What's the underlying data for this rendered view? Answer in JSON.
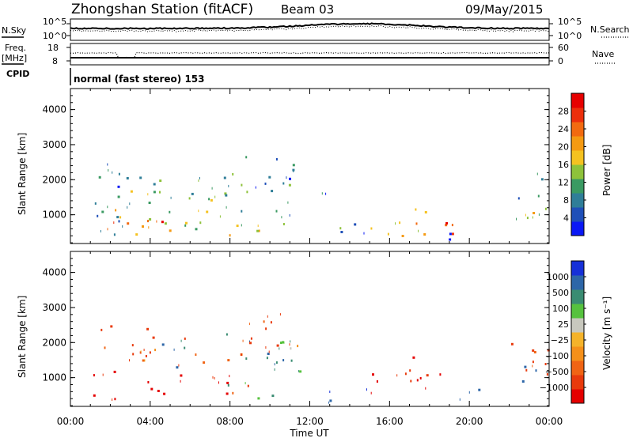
{
  "header": {
    "station": "Zhongshan Station (fitACF)",
    "beam": "Beam 03",
    "date": "09/May/2015"
  },
  "summary": {
    "nsky_label": "N.Sky",
    "nsearch_label": "N.Search",
    "freq_label_1": "Freq.",
    "freq_label_2": "[MHz]",
    "nave_label": "Nave",
    "cpid_label": "CPID",
    "cpid_text": "normal (fast stereo) 153",
    "n_top": "10^5",
    "n_bottom": "10^0",
    "freq_top": "18",
    "freq_bottom": "8",
    "nave_top": "60",
    "nave_bottom": "0"
  },
  "x_axis": {
    "label": "Time UT",
    "ticks": [
      "00:00",
      "04:00",
      "08:00",
      "12:00",
      "16:00",
      "20:00",
      "00:00"
    ]
  },
  "chart_data": [
    {
      "type": "heatmap",
      "name": "power",
      "ylabel": "Slant Range [km]",
      "yticks": [
        1000,
        2000,
        3000,
        4000
      ],
      "ylim": [
        180,
        4600
      ],
      "xlim_hours": [
        0,
        24
      ],
      "colorbar": {
        "label": "Power [dB]",
        "ticks": [
          "4",
          "8",
          "12",
          "16",
          "20",
          "24",
          "28"
        ],
        "colors": [
          "#0a18f5",
          "#1f4fb8",
          "#2f7e98",
          "#3a9a62",
          "#8ec23a",
          "#f5c220",
          "#f59a12",
          "#f26a10",
          "#ec2f0c",
          "#e60000"
        ]
      },
      "blobs": [
        {
          "t0": 1.0,
          "t1": 3.0,
          "r0": 250,
          "r1": 2600,
          "v": 6
        },
        {
          "t0": 1.3,
          "t1": 3.2,
          "r0": 400,
          "r1": 1200,
          "v": 24
        },
        {
          "t0": 3.0,
          "t1": 6.0,
          "r0": 300,
          "r1": 1000,
          "v": 18
        },
        {
          "t0": 3.0,
          "t1": 5.2,
          "r0": 500,
          "r1": 900,
          "v": 27
        },
        {
          "t0": 2.0,
          "t1": 10.5,
          "r0": 1100,
          "r1": 2200,
          "v": 11
        },
        {
          "t0": 5.5,
          "t1": 9.5,
          "r0": 600,
          "r1": 1200,
          "v": 15
        },
        {
          "t0": 7.0,
          "t1": 10.0,
          "r0": 400,
          "r1": 800,
          "v": 20
        },
        {
          "t0": 8.5,
          "t1": 11.2,
          "r0": 1500,
          "r1": 2700,
          "v": 7
        },
        {
          "t0": 10.0,
          "t1": 11.5,
          "r0": 700,
          "r1": 1900,
          "v": 10
        },
        {
          "t0": 12.5,
          "t1": 13.5,
          "r0": 1500,
          "r1": 2000,
          "v": 6
        },
        {
          "t0": 13.0,
          "t1": 15.5,
          "r0": 300,
          "r1": 800,
          "v": 9
        },
        {
          "t0": 15.0,
          "t1": 18.0,
          "r0": 400,
          "r1": 1300,
          "v": 19
        },
        {
          "t0": 17.0,
          "t1": 19.2,
          "r0": 400,
          "r1": 1100,
          "v": 26
        },
        {
          "t0": 18.5,
          "t1": 20.2,
          "r0": 300,
          "r1": 700,
          "v": 7
        },
        {
          "t0": 22.0,
          "t1": 24.0,
          "r0": 900,
          "r1": 2300,
          "v": 9
        },
        {
          "t0": 22.8,
          "t1": 23.8,
          "r0": 800,
          "r1": 1400,
          "v": 19
        }
      ]
    },
    {
      "type": "heatmap",
      "name": "velocity",
      "ylabel": "Slant Range [km]",
      "yticks": [
        1000,
        2000,
        3000,
        4000
      ],
      "ylim": [
        180,
        4600
      ],
      "xlim_hours": [
        0,
        24
      ],
      "colorbar": {
        "label": "Velocity [m s⁻¹]",
        "ticks": [
          "1000",
          "500",
          "100",
          "25",
          "−25",
          "−100",
          "−500",
          "−1000"
        ],
        "colors": [
          "#1630d8",
          "#2d66a8",
          "#3a8c72",
          "#56c23e",
          "#c8c8be",
          "#f5b32a",
          "#f5901a",
          "#f06414",
          "#e83a0c",
          "#e40000"
        ]
      },
      "blobs": [
        {
          "t0": 1.0,
          "t1": 3.0,
          "r0": 400,
          "r1": 1300,
          "v": -300
        },
        {
          "t0": 1.0,
          "t1": 4.5,
          "r0": 1500,
          "r1": 2600,
          "v": -110
        },
        {
          "t0": 3.0,
          "t1": 8.0,
          "r0": 500,
          "r1": 1100,
          "v": -350
        },
        {
          "t0": 3.5,
          "t1": 11.5,
          "r0": 1300,
          "r1": 2300,
          "v": 0
        },
        {
          "t0": 7.0,
          "t1": 10.5,
          "r0": 400,
          "r1": 1100,
          "v": 0
        },
        {
          "t0": 8.5,
          "t1": 11.2,
          "r0": 1600,
          "r1": 3000,
          "v": -110
        },
        {
          "t0": 10.0,
          "t1": 11.5,
          "r0": 700,
          "r1": 2000,
          "v": 40
        },
        {
          "t0": 12.5,
          "t1": 15.0,
          "r0": 300,
          "r1": 800,
          "v": 200
        },
        {
          "t0": 15.0,
          "t1": 18.0,
          "r0": 500,
          "r1": 1300,
          "v": -250
        },
        {
          "t0": 17.0,
          "t1": 19.0,
          "r0": 900,
          "r1": 1700,
          "v": -300
        },
        {
          "t0": 18.5,
          "t1": 20.5,
          "r0": 300,
          "r1": 700,
          "v": 60
        },
        {
          "t0": 22.0,
          "t1": 24.0,
          "r0": 1000,
          "r1": 2300,
          "v": -110
        },
        {
          "t0": 22.5,
          "t1": 23.8,
          "r0": 900,
          "r1": 1600,
          "v": 200
        }
      ]
    }
  ]
}
